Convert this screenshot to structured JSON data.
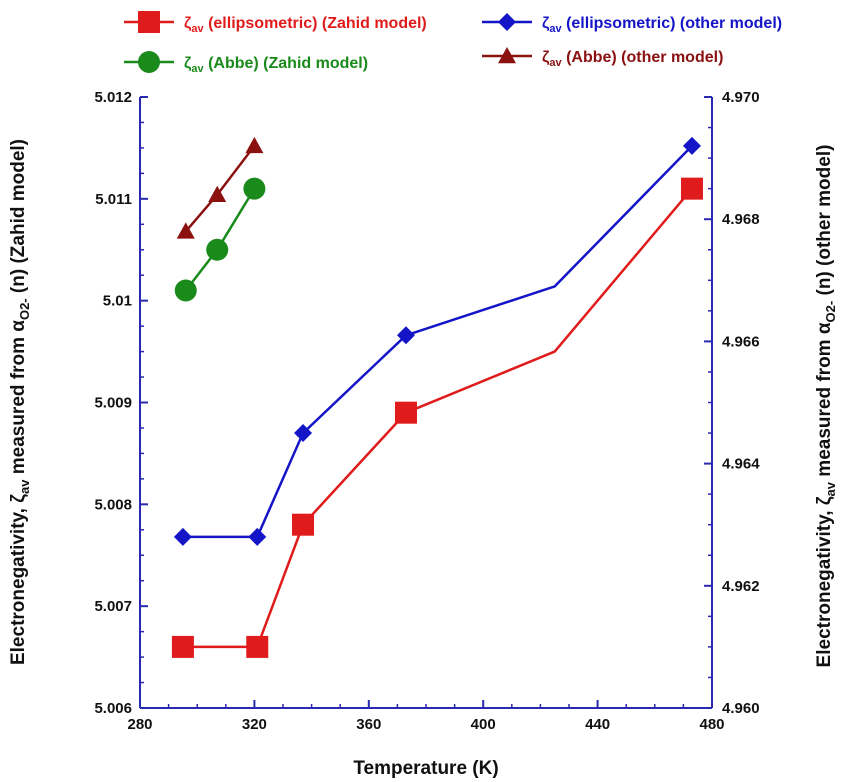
{
  "chart_data": {
    "type": "line",
    "xlabel": "Temperature (K)",
    "ylabel_left": "Electronegativity, ζav measured from αO2- (n) (Zahid  model)",
    "ylabel_right": "Electronegativity, ζav measured from αO2- (n) (other  model)",
    "xlim": [
      280,
      480
    ],
    "ylim_left": [
      5.006,
      5.012
    ],
    "ylim_right": [
      4.96,
      4.97
    ],
    "x_ticks": [
      "280",
      "320",
      "360",
      "400",
      "440",
      "480"
    ],
    "y_left_ticks": [
      "5.006",
      "5.007",
      "5.008",
      "5.009",
      "5.01",
      "5.011",
      "5.012"
    ],
    "y_right_ticks": [
      "4.960",
      "4.962",
      "4.964",
      "4.966",
      "4.968",
      "4.970"
    ],
    "grid": false,
    "legend_position": "top",
    "series": [
      {
        "legend": {
          "symbol": "ζ",
          "sub": "av",
          "rest": " (ellipsometric) (Zahid model)"
        },
        "axis": "left",
        "color": "#e01b1b",
        "marker": "square",
        "x": [
          295,
          321,
          337,
          373,
          425,
          473
        ],
        "y": [
          5.0066,
          5.0066,
          5.0078,
          5.0089,
          5.0095,
          5.0111
        ],
        "markers": [
          true,
          true,
          true,
          true,
          false,
          true
        ]
      },
      {
        "legend": {
          "symbol": "ζ",
          "sub": "av",
          "rest": " (ellipsometric) (other model)"
        },
        "axis": "right",
        "color": "#1515c8",
        "marker": "diamond",
        "x": [
          295,
          321,
          337,
          373,
          425,
          473
        ],
        "y": [
          4.9628,
          4.9628,
          4.9645,
          4.9661,
          4.9669,
          4.9692
        ],
        "markers": [
          true,
          true,
          true,
          true,
          false,
          true
        ]
      },
      {
        "legend": {
          "symbol": "ζ",
          "sub": "av",
          "rest": " (Abbe) (Zahid model)"
        },
        "axis": "left",
        "color": "#1a8a1a",
        "marker": "circle",
        "x": [
          296,
          307,
          320
        ],
        "y": [
          5.0101,
          5.0105,
          5.0111
        ],
        "markers": [
          true,
          true,
          true
        ]
      },
      {
        "legend": {
          "symbol": "ζ",
          "sub": "av",
          "rest": "  (Abbe) (other model)"
        },
        "axis": "right",
        "color": "#8b1111",
        "marker": "triangle",
        "x": [
          296,
          307,
          320
        ],
        "y": [
          4.9678,
          4.9684,
          4.9692
        ],
        "markers": [
          true,
          true,
          true
        ]
      }
    ]
  }
}
